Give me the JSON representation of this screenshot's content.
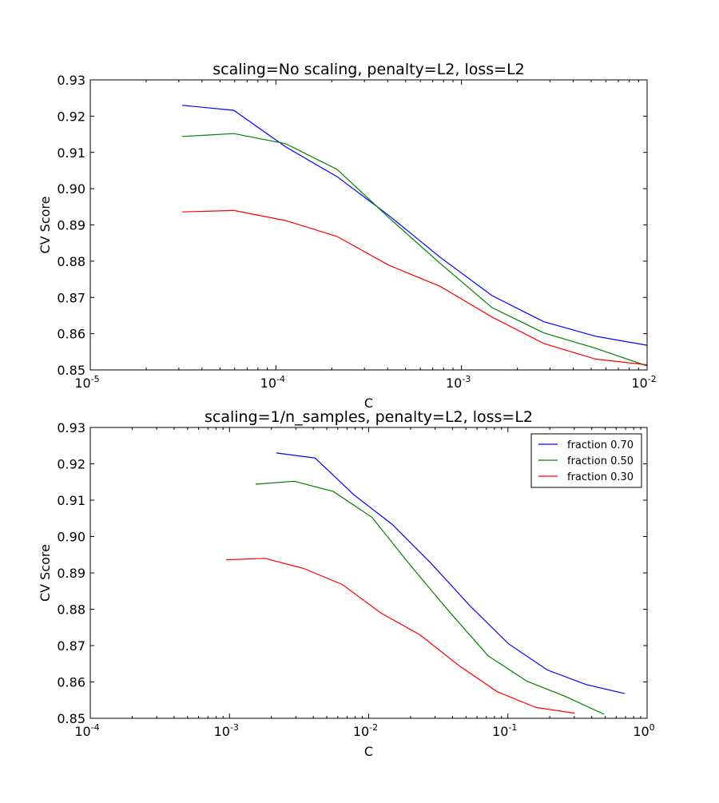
{
  "chart_data": [
    {
      "type": "line",
      "title": "scaling=No scaling, penalty=L2, loss=L2",
      "xlabel": "C",
      "ylabel": "CV Score",
      "xscale": "log",
      "xlim": [
        1e-05,
        0.01
      ],
      "ylim": [
        0.85,
        0.93
      ],
      "xticks": [
        {
          "base": "10",
          "exp": "-5",
          "v": 1e-05
        },
        {
          "base": "10",
          "exp": "-4",
          "v": 0.0001
        },
        {
          "base": "10",
          "exp": "-3",
          "v": 0.001
        },
        {
          "base": "10",
          "exp": "-2",
          "v": 0.01
        }
      ],
      "yticks": [
        "0.85",
        "0.86",
        "0.87",
        "0.88",
        "0.89",
        "0.90",
        "0.91",
        "0.92",
        "0.93"
      ],
      "legend": null,
      "series": [
        {
          "name": "fraction 0.70",
          "color": "#0000ff",
          "x": [
            3.13e-05,
            5.94e-05,
            0.000113,
            0.000214,
            0.000406,
            0.000771,
            0.00146,
            0.00278,
            0.00527,
            0.01
          ],
          "y": [
            0.923,
            0.9216,
            0.9115,
            0.9033,
            0.8926,
            0.881,
            0.8705,
            0.8633,
            0.8593,
            0.8568
          ]
        },
        {
          "name": "fraction 0.50",
          "color": "#008000",
          "x": [
            3.13e-05,
            5.94e-05,
            0.000113,
            0.000214,
            0.000406,
            0.000771,
            0.00146,
            0.00278,
            0.00527,
            0.01
          ],
          "y": [
            0.9144,
            0.9152,
            0.9124,
            0.9053,
            0.892,
            0.8793,
            0.8672,
            0.8602,
            0.856,
            0.8511
          ]
        },
        {
          "name": "fraction 0.30",
          "color": "#ff0000",
          "x": [
            3.13e-05,
            5.94e-05,
            0.000113,
            0.000214,
            0.000406,
            0.000771,
            0.00146,
            0.00278,
            0.00527,
            0.01
          ],
          "y": [
            0.8936,
            0.894,
            0.8912,
            0.8868,
            0.8789,
            0.873,
            0.8646,
            0.8573,
            0.853,
            0.8514
          ]
        }
      ]
    },
    {
      "type": "line",
      "title": "scaling=1/n_samples, penalty=L2, loss=L2",
      "xlabel": "C",
      "ylabel": "CV Score",
      "xscale": "log",
      "xlim": [
        0.0001,
        1
      ],
      "ylim": [
        0.85,
        0.93
      ],
      "xticks": [
        {
          "base": "10",
          "exp": "-4",
          "v": 0.0001
        },
        {
          "base": "10",
          "exp": "-3",
          "v": 0.001
        },
        {
          "base": "10",
          "exp": "-2",
          "v": 0.01
        },
        {
          "base": "10",
          "exp": "-1",
          "v": 0.1
        },
        {
          "base": "10",
          "exp": "0",
          "v": 1
        }
      ],
      "yticks": [
        "0.85",
        "0.86",
        "0.87",
        "0.88",
        "0.89",
        "0.90",
        "0.91",
        "0.92",
        "0.93"
      ],
      "legend": "top-right",
      "series": [
        {
          "name": "fraction 0.70",
          "color": "#0000ff",
          "x": [
            0.00217,
            0.00412,
            0.00782,
            0.0148,
            0.0281,
            0.0533,
            0.101,
            0.192,
            0.364,
            0.69
          ],
          "y": [
            0.923,
            0.9216,
            0.9115,
            0.9033,
            0.8926,
            0.881,
            0.8705,
            0.8633,
            0.8593,
            0.8568
          ]
        },
        {
          "name": "fraction 0.50",
          "color": "#008000",
          "x": [
            0.00154,
            0.00293,
            0.00556,
            0.01055,
            0.02,
            0.038,
            0.072,
            0.137,
            0.259,
            0.492
          ],
          "y": [
            0.9144,
            0.9152,
            0.9124,
            0.9053,
            0.892,
            0.8793,
            0.8672,
            0.8602,
            0.856,
            0.8511
          ]
        },
        {
          "name": "fraction 0.30",
          "color": "#ff0000",
          "x": [
            0.000946,
            0.0018,
            0.00341,
            0.00647,
            0.0123,
            0.0233,
            0.0442,
            0.0839,
            0.159,
            0.302
          ],
          "y": [
            0.8936,
            0.894,
            0.8912,
            0.8868,
            0.8789,
            0.873,
            0.8646,
            0.8573,
            0.853,
            0.8514
          ]
        }
      ]
    }
  ]
}
